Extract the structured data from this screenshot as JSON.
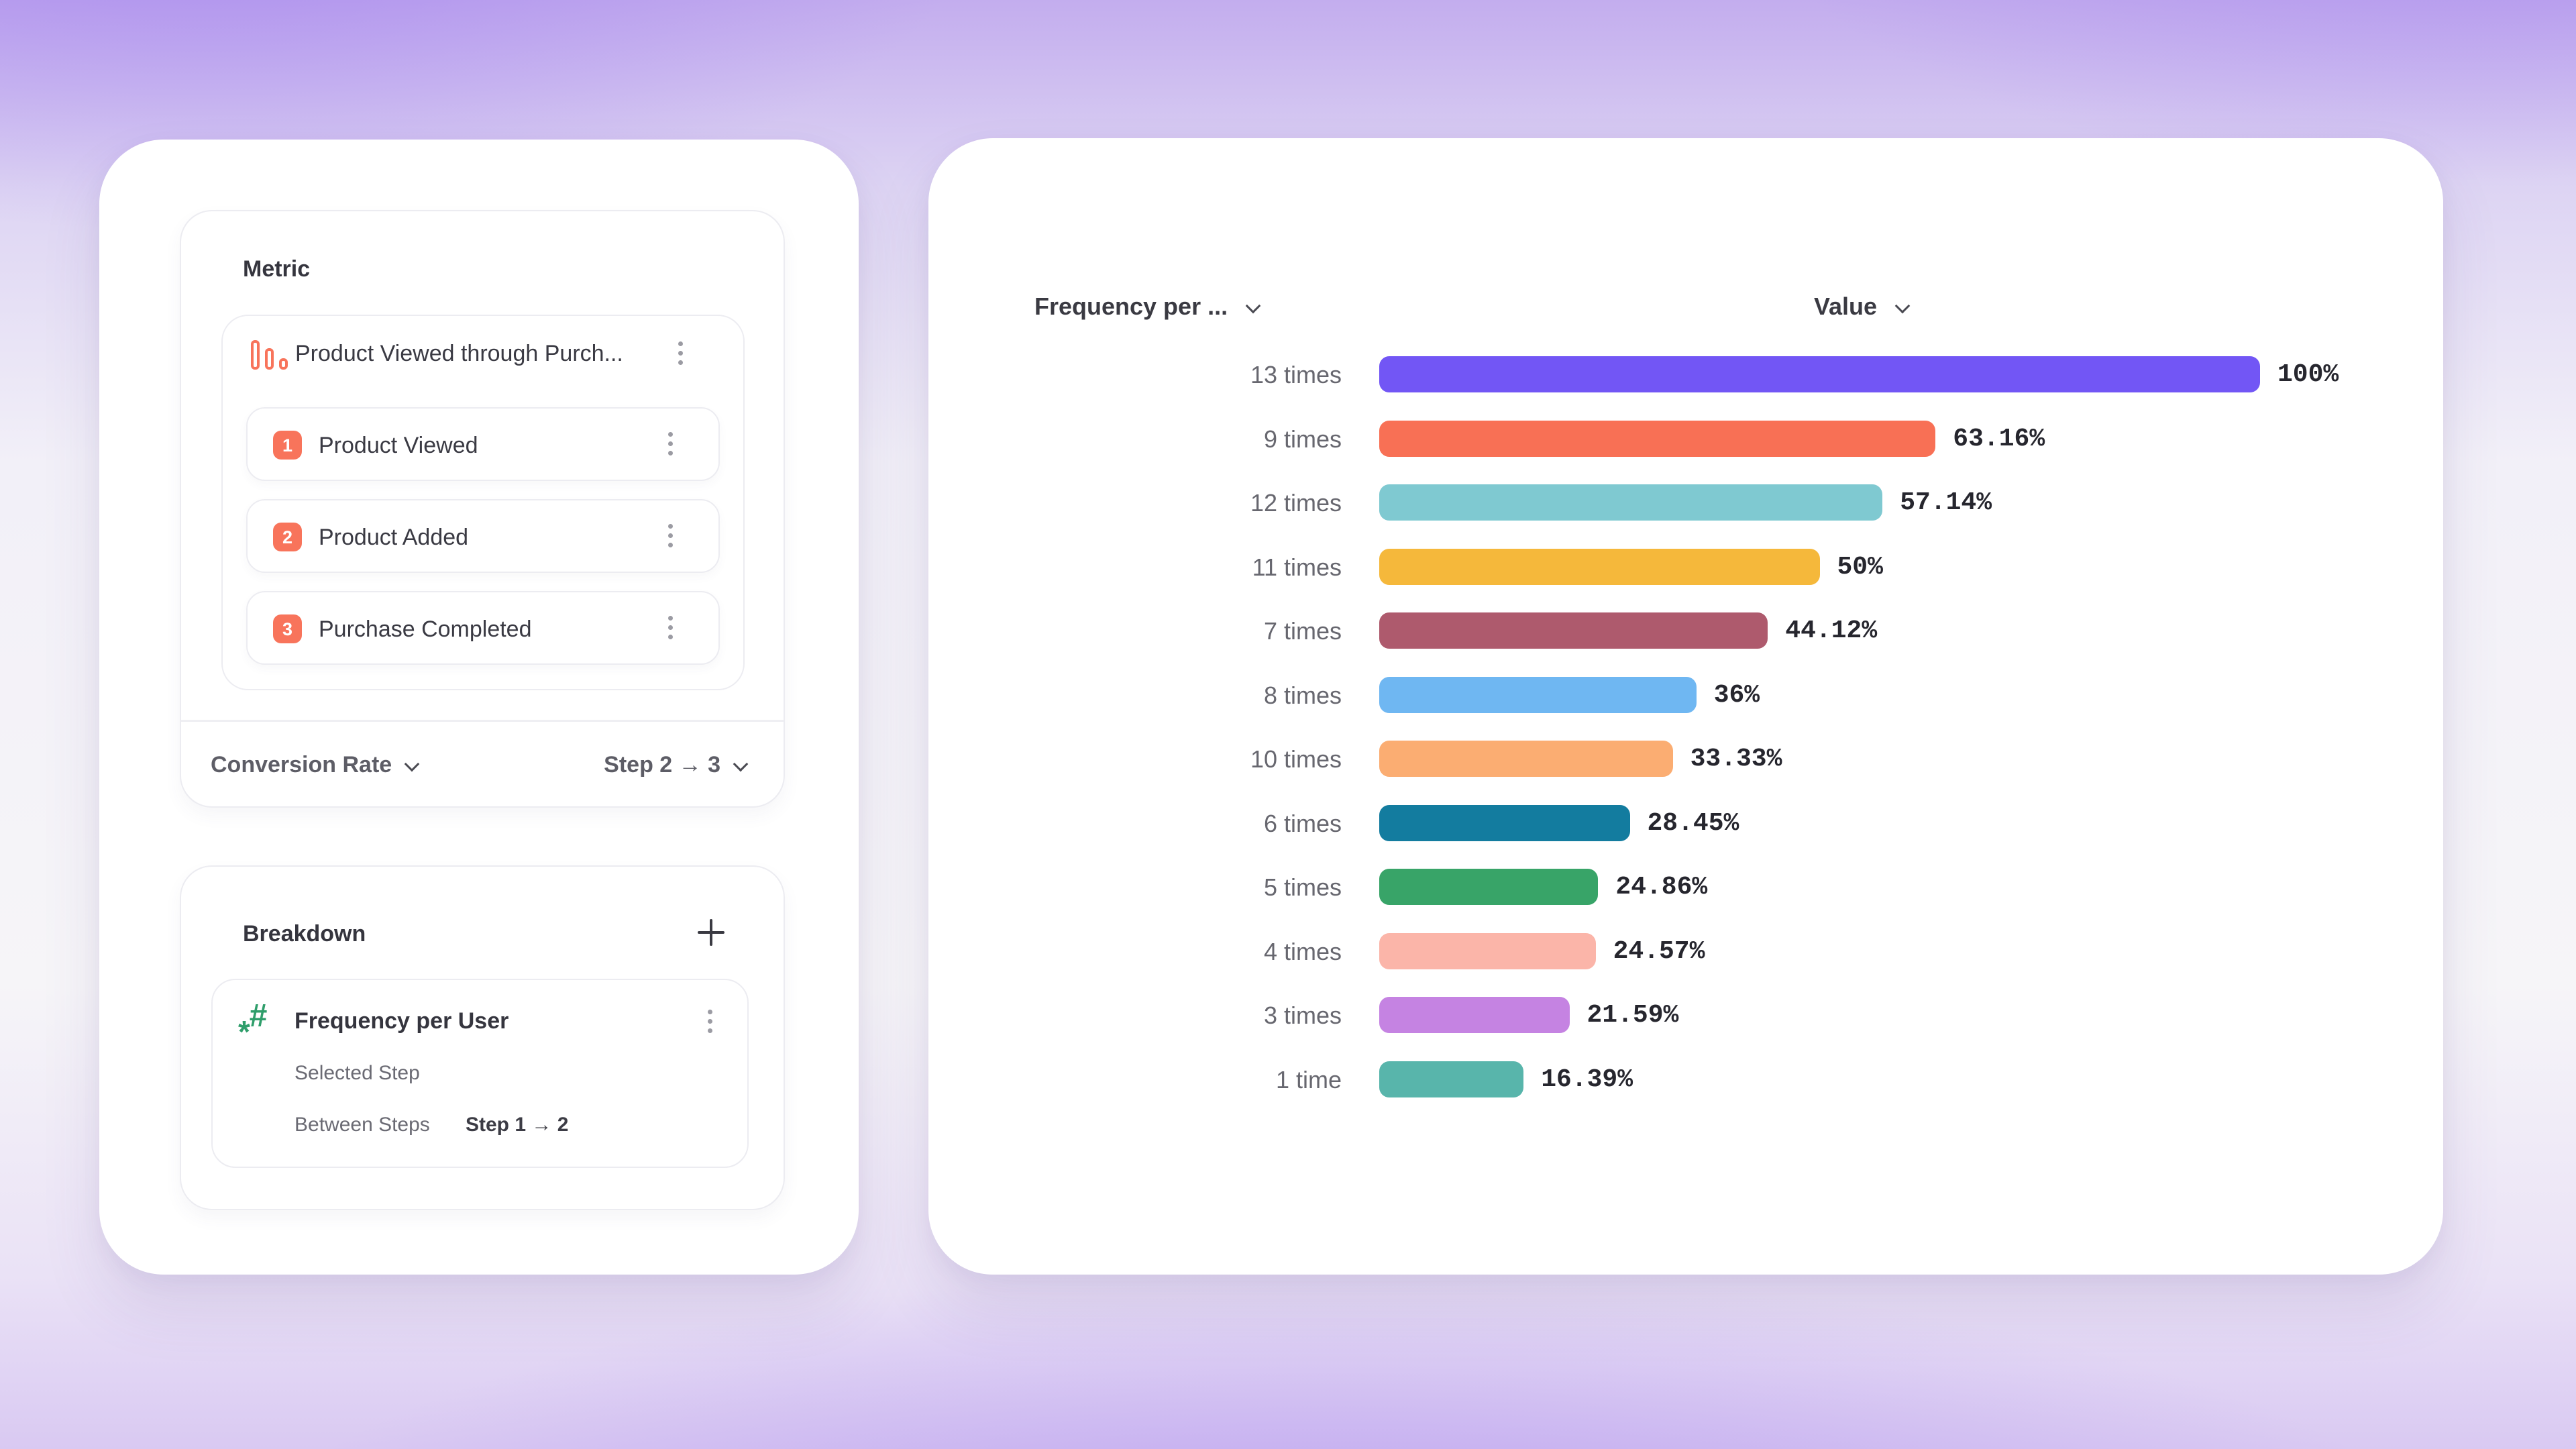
{
  "background": {
    "top_accent": "#c3adee",
    "bottom_accent": "#d9c9f2",
    "card_color": "#ffffff"
  },
  "left_panel": {
    "metric_section": {
      "title": "Metric",
      "funnel": {
        "icon": "funnel-bars-icon",
        "icon_color": "#f8745b",
        "title": "Product Viewed through Purch...",
        "badge_color": "#f8745b",
        "steps": [
          {
            "index": "1",
            "label": "Product Viewed"
          },
          {
            "index": "2",
            "label": "Product Added"
          },
          {
            "index": "3",
            "label": "Purchase Completed"
          }
        ]
      },
      "footer": {
        "conversion_label": "Conversion Rate",
        "step_range": "Step 2 → 3"
      }
    },
    "breakdown_section": {
      "title": "Breakdown",
      "item": {
        "icon": "hash-number-icon",
        "icon_color": "#2f9e6b",
        "title": "Frequency per User",
        "rows": [
          {
            "label": "Selected Step",
            "value": ""
          },
          {
            "label": "Between Steps",
            "value": "Step 1 → 2"
          }
        ]
      }
    }
  },
  "right_panel": {
    "column_headers": {
      "category": "Frequency per ...",
      "value": "Value"
    }
  },
  "chart_data": {
    "type": "bar",
    "orientation": "horizontal",
    "title": "",
    "xlabel": "Value",
    "ylabel": "Frequency per ...",
    "xlim": [
      0,
      100
    ],
    "grid": false,
    "categories": [
      "13 times",
      "9 times",
      "12 times",
      "11 times",
      "7 times",
      "8 times",
      "10 times",
      "6 times",
      "5 times",
      "4 times",
      "3 times",
      "1 time"
    ],
    "values": [
      100,
      63.16,
      57.14,
      50,
      44.12,
      36,
      33.33,
      28.45,
      24.86,
      24.57,
      21.59,
      16.39
    ],
    "value_labels": [
      "100%",
      "63.16%",
      "57.14%",
      "50%",
      "44.12%",
      "36%",
      "33.33%",
      "28.45%",
      "24.86%",
      "24.57%",
      "21.59%",
      "16.39%"
    ],
    "colors": [
      "#7256f5",
      "#f87055",
      "#7fc9d1",
      "#f5b83b",
      "#ae5a6d",
      "#6fb7f2",
      "#fbad72",
      "#137c9f",
      "#38a468",
      "#fbb5a9",
      "#c583e2",
      "#58b5ab"
    ]
  }
}
